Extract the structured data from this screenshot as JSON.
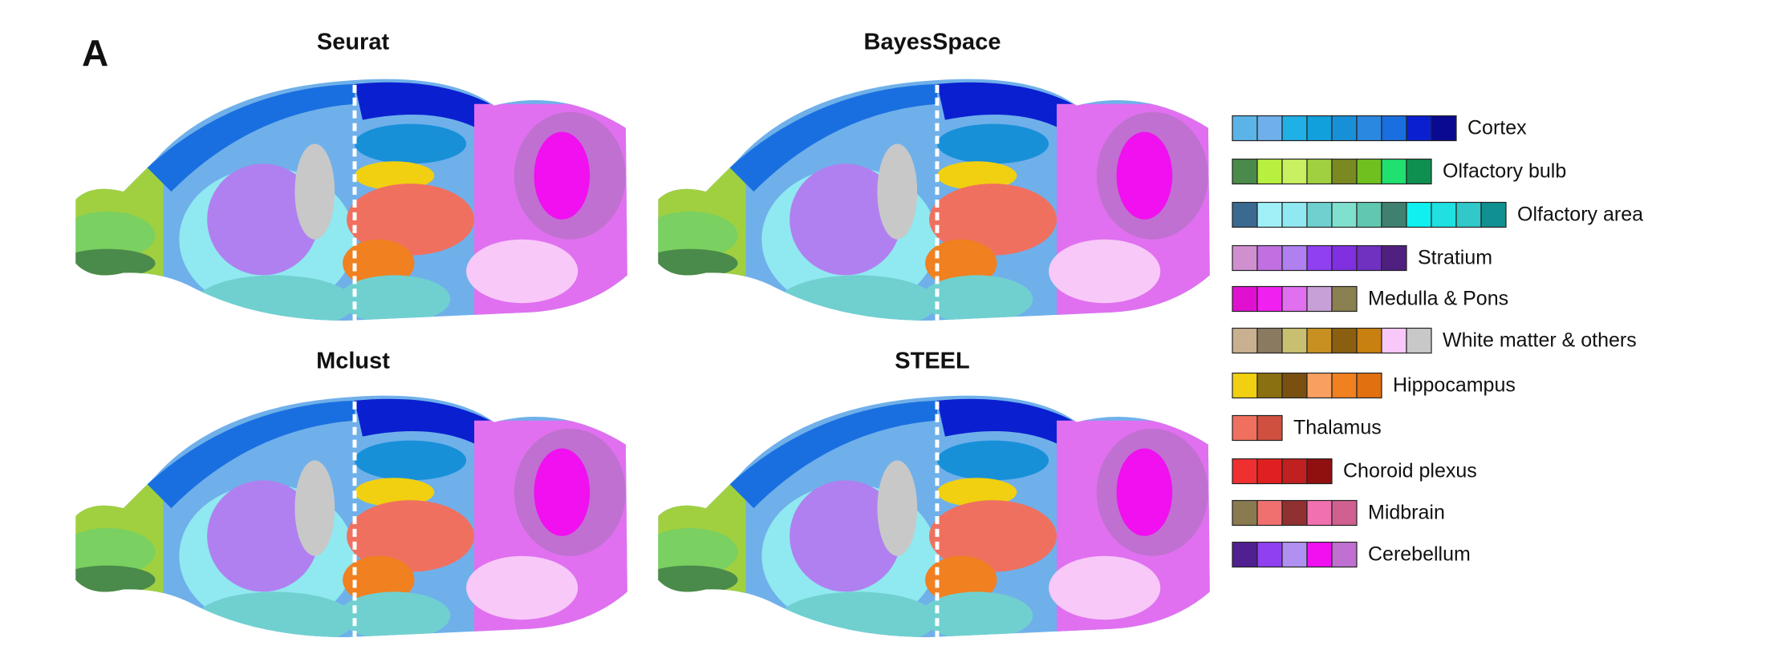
{
  "figure": {
    "panel_label": "A",
    "panels": [
      {
        "title": "Seurat"
      },
      {
        "title": "BayesSpace"
      },
      {
        "title": "Mclust"
      },
      {
        "title": "STEEL"
      }
    ],
    "legend": [
      {
        "label": "Cortex",
        "colors": [
          "#5bb4e8",
          "#6fb0ea",
          "#1fb0e6",
          "#12a0dc",
          "#1890d8",
          "#2a88e0",
          "#1a6fe0",
          "#0a20d0",
          "#0a0a90"
        ]
      },
      {
        "label": "Olfactory bulb",
        "colors": [
          "#4a8a4a",
          "#b8f040",
          "#c8f060",
          "#a0d040",
          "#7a8a20",
          "#70c020",
          "#20e070",
          "#109050"
        ]
      },
      {
        "label": "Olfactory area",
        "colors": [
          "#3a6a90",
          "#a0f0f8",
          "#90e8f0",
          "#70d0d0",
          "#80e0d0",
          "#60c8b0",
          "#408070",
          "#10f0f0",
          "#20e0e0",
          "#30c8c8",
          "#109090"
        ]
      },
      {
        "label": "Stratium",
        "colors": [
          "#d090d0",
          "#c070e0",
          "#b080f0",
          "#9040f0",
          "#8030e0",
          "#7030c0",
          "#502080"
        ]
      },
      {
        "label": "Medulla & Pons",
        "colors": [
          "#e010d0",
          "#f020f0",
          "#e070f0",
          "#c8a0d8",
          "#8a8050"
        ]
      },
      {
        "label": "White matter & others",
        "colors": [
          "#c8b090",
          "#8a7a60",
          "#c8c070",
          "#c89020",
          "#8a6010",
          "#c88010",
          "#f8c8f8",
          "#c8c8c8"
        ]
      },
      {
        "label": "Hippocampus",
        "colors": [
          "#f0d010",
          "#8a7010",
          "#7a5010",
          "#f8a060",
          "#f08020",
          "#e07010"
        ]
      },
      {
        "label": "Thalamus",
        "colors": [
          "#f07060",
          "#d05040"
        ]
      },
      {
        "label": "Choroid plexus",
        "colors": [
          "#f03030",
          "#e02020",
          "#c02020",
          "#901010"
        ]
      },
      {
        "label": "Midbrain",
        "colors": [
          "#8a7a50",
          "#f07070",
          "#903030",
          "#f070b0",
          "#d06090"
        ]
      },
      {
        "label": "Cerebellum",
        "colors": [
          "#502090",
          "#9040f0",
          "#b090f0",
          "#f010f0",
          "#c070d0"
        ]
      }
    ]
  }
}
